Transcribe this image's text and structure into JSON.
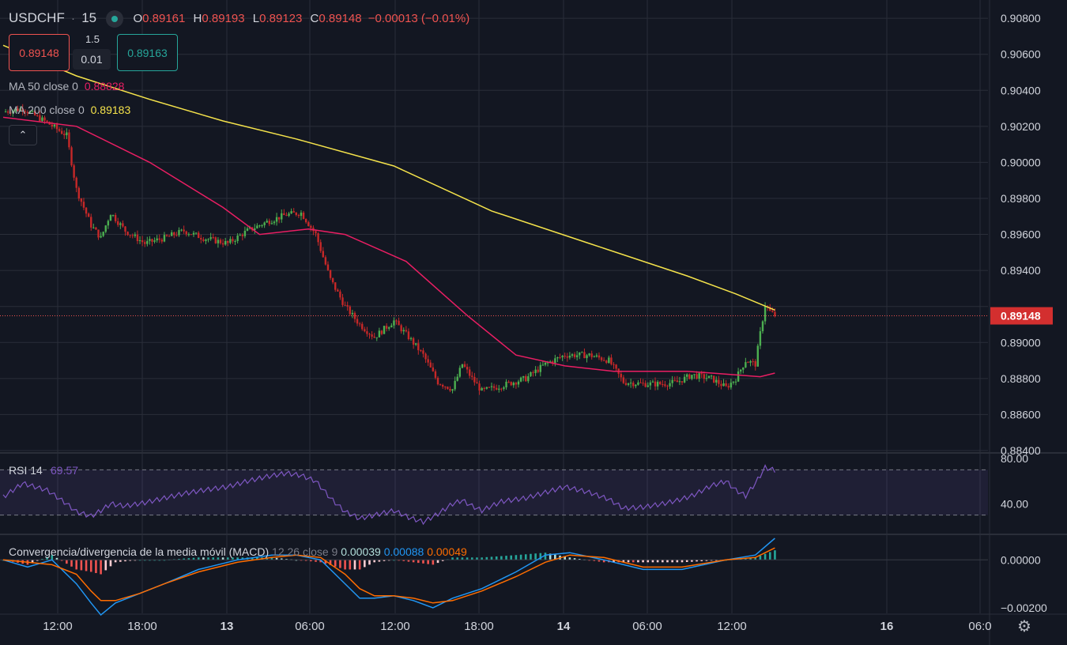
{
  "header": {
    "symbol": "USDCHF",
    "sep": "·",
    "interval": "15",
    "o_label": "O",
    "o_value": "0.89161",
    "h_label": "H",
    "h_value": "0.89193",
    "l_label": "L",
    "l_value": "0.89123",
    "c_label": "C",
    "c_value": "0.89148",
    "change": "−0.00013 (−0.01%)"
  },
  "trade": {
    "sell_price": "0.89148",
    "buy_price": "0.89163",
    "spread": "1.5",
    "lot": "0.01"
  },
  "legend": {
    "ma50_label": "MA 50 close 0",
    "ma50_value": "0.88828",
    "ma200_label": "MA 200 close 0",
    "ma200_value": "0.89183",
    "collapse_glyph": "⌃"
  },
  "colors": {
    "bg": "#131722",
    "up": "#26a69a",
    "candle_up": "#4caf50",
    "down": "#ef5350",
    "candle_down": "#c62828",
    "ma50": "#e91e63",
    "ma200": "#f5e34b",
    "rsi": "#7e57c2",
    "macd": "#2196f3",
    "signal": "#ff6d00",
    "grid": "#2a2e39",
    "text": "#d1d4dc"
  },
  "icons": {
    "settings": "gear-icon",
    "collapse": "chevron-up-icon",
    "status": "market-open-dot"
  },
  "chart_data": [
    {
      "type": "candlestick",
      "title": "USDCHF · 15",
      "x_ticks": [
        "12:00",
        "18:00",
        "13",
        "06:00",
        "12:00",
        "18:00",
        "14",
        "06:00",
        "12:00",
        "16",
        "06:0"
      ],
      "y_ticks": [
        "0.90800",
        "0.90600",
        "0.90400",
        "0.90200",
        "0.90000",
        "0.89800",
        "0.89600",
        "0.89400",
        "0.89200",
        "0.89000",
        "0.88800",
        "0.88600",
        "0.88400"
      ],
      "ylim": [
        0.884,
        0.9084
      ],
      "last_price": 0.89148,
      "last_price_label": "0.89148",
      "anchors": [
        [
          0,
          0.9028
        ],
        [
          8,
          0.903
        ],
        [
          18,
          0.9022
        ],
        [
          26,
          0.9015
        ],
        [
          30,
          0.8985
        ],
        [
          36,
          0.8965
        ],
        [
          40,
          0.8958
        ],
        [
          44,
          0.8972
        ],
        [
          50,
          0.8962
        ],
        [
          58,
          0.8955
        ],
        [
          66,
          0.8958
        ],
        [
          74,
          0.8962
        ],
        [
          82,
          0.8958
        ],
        [
          92,
          0.8955
        ],
        [
          100,
          0.8962
        ],
        [
          108,
          0.8967
        ],
        [
          116,
          0.8971
        ],
        [
          122,
          0.8972
        ],
        [
          128,
          0.896
        ],
        [
          134,
          0.8935
        ],
        [
          140,
          0.892
        ],
        [
          146,
          0.891
        ],
        [
          152,
          0.8903
        ],
        [
          160,
          0.8912
        ],
        [
          166,
          0.8903
        ],
        [
          172,
          0.8893
        ],
        [
          178,
          0.8878
        ],
        [
          184,
          0.8874
        ],
        [
          188,
          0.8888
        ],
        [
          192,
          0.888
        ],
        [
          196,
          0.8873
        ],
        [
          204,
          0.8876
        ],
        [
          214,
          0.888
        ],
        [
          222,
          0.8888
        ],
        [
          230,
          0.8893
        ],
        [
          240,
          0.8893
        ],
        [
          248,
          0.889
        ],
        [
          254,
          0.8878
        ],
        [
          262,
          0.8877
        ],
        [
          270,
          0.8877
        ],
        [
          276,
          0.8878
        ],
        [
          282,
          0.8882
        ],
        [
          290,
          0.888
        ],
        [
          296,
          0.8875
        ],
        [
          300,
          0.888
        ],
        [
          304,
          0.889
        ],
        [
          308,
          0.8888
        ],
        [
          310,
          0.8905
        ],
        [
          312,
          0.8921
        ],
        [
          314,
          0.8917
        ],
        [
          316,
          0.8915
        ]
      ],
      "ma50": [
        [
          0,
          0.9025
        ],
        [
          30,
          0.902
        ],
        [
          60,
          0.9
        ],
        [
          90,
          0.8975
        ],
        [
          105,
          0.896
        ],
        [
          125,
          0.8963
        ],
        [
          140,
          0.896
        ],
        [
          165,
          0.8945
        ],
        [
          190,
          0.8915
        ],
        [
          210,
          0.8893
        ],
        [
          230,
          0.8887
        ],
        [
          250,
          0.8884
        ],
        [
          280,
          0.8884
        ],
        [
          300,
          0.8882
        ],
        [
          310,
          0.8881
        ],
        [
          316,
          0.8883
        ]
      ],
      "ma200": [
        [
          0,
          0.9065
        ],
        [
          30,
          0.9048
        ],
        [
          60,
          0.9035
        ],
        [
          90,
          0.9023
        ],
        [
          120,
          0.9013
        ],
        [
          160,
          0.8998
        ],
        [
          200,
          0.8973
        ],
        [
          240,
          0.8955
        ],
        [
          280,
          0.8937
        ],
        [
          300,
          0.8927
        ],
        [
          316,
          0.8918
        ]
      ]
    },
    {
      "type": "line",
      "name": "RSI",
      "label": "RSI 14",
      "value_label": "69.57",
      "y_ticks": [
        "80.00",
        "40.00"
      ],
      "bands": [
        70,
        30
      ],
      "ylim": [
        20,
        80
      ],
      "x": [
        0,
        8,
        18,
        26,
        30,
        36,
        40,
        44,
        50,
        58,
        66,
        74,
        82,
        92,
        100,
        108,
        116,
        122,
        128,
        134,
        140,
        146,
        152,
        160,
        166,
        172,
        178,
        184,
        188,
        192,
        196,
        204,
        214,
        222,
        230,
        240,
        248,
        254,
        262,
        270,
        276,
        282,
        290,
        296,
        300,
        304,
        308,
        312,
        316
      ],
      "values": [
        46,
        58,
        52,
        40,
        33,
        29,
        34,
        40,
        38,
        41,
        45,
        49,
        52,
        55,
        60,
        64,
        67,
        65,
        60,
        45,
        33,
        27,
        30,
        34,
        28,
        24,
        31,
        40,
        43,
        38,
        34,
        42,
        45,
        50,
        55,
        50,
        44,
        36,
        37,
        40,
        43,
        47,
        56,
        60,
        52,
        47,
        58,
        72,
        69.57
      ]
    },
    {
      "type": "histogram+line",
      "name": "MACD",
      "label": "Convergencia/divergencia de la media móvil (MACD)",
      "params": "12 26 close 9",
      "values_label": [
        "0.00039",
        "0.00088",
        "0.00049"
      ],
      "y_ticks": [
        "0.00000",
        "−0.00200"
      ],
      "ylim": [
        -0.0023,
        0.001
      ],
      "x": [
        0,
        10,
        20,
        30,
        36,
        40,
        46,
        56,
        66,
        80,
        96,
        110,
        120,
        130,
        140,
        146,
        152,
        160,
        168,
        176,
        184,
        196,
        210,
        222,
        232,
        246,
        262,
        278,
        296,
        308,
        316
      ],
      "macd": [
        0.0,
        -0.0003,
        0.0,
        -0.001,
        -0.0018,
        -0.0023,
        -0.0018,
        -0.0014,
        -0.001,
        -0.0004,
        0.0,
        0.0002,
        0.0002,
        0.0,
        -0.001,
        -0.0016,
        -0.0016,
        -0.0015,
        -0.0017,
        -0.002,
        -0.0016,
        -0.0012,
        -0.0005,
        0.0002,
        0.0003,
        0.0,
        -0.0004,
        -0.0004,
        0.0,
        0.0002,
        0.0009
      ],
      "signal": [
        0.0,
        -0.0001,
        -0.0002,
        -0.0006,
        -0.0013,
        -0.0017,
        -0.0017,
        -0.0014,
        -0.001,
        -0.0005,
        -0.0001,
        0.0001,
        0.0002,
        0.0001,
        -0.0006,
        -0.0012,
        -0.0015,
        -0.0015,
        -0.0016,
        -0.0018,
        -0.0017,
        -0.0013,
        -0.0007,
        -0.0001,
        0.0002,
        0.0001,
        -0.0003,
        -0.0003,
        0.0,
        0.0001,
        0.0005
      ]
    }
  ]
}
